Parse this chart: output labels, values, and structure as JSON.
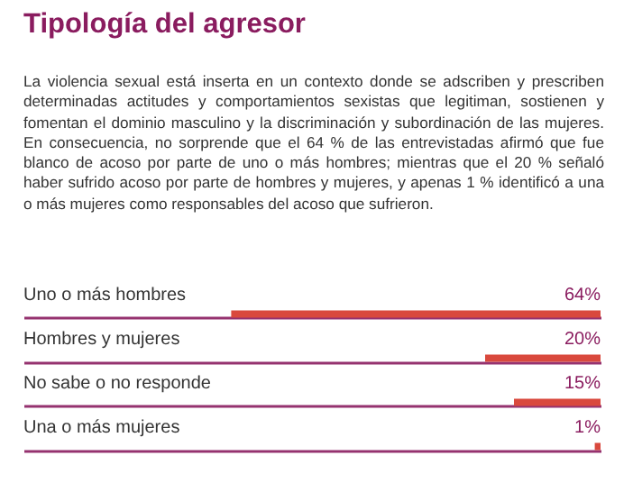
{
  "chart_data": {
    "type": "bar",
    "orientation": "horizontal",
    "title": "Tipología del agresor",
    "subtitle": "La violencia sexual está inserta en un contexto donde se adscriben y prescriben determinadas actitudes y comportamientos sexistas que legitiman, sostienen y fomentan el dominio masculino y la discriminación y subordinación de las mujeres. En consecuencia, no sorprende que el 64 % de las entrevistadas afirmó que fue blanco de acoso por parte de uno o más hombres; mientras que el 20 % señaló haber sufrido acoso por parte de hombres y mujeres, y apenas 1 % identificó a una o más mujeres como responsables del acoso que sufrieron.",
    "categories": [
      "Uno o más hombres",
      "Hombres y mujeres",
      "No sabe o no responde",
      "Una o más mujeres"
    ],
    "values": [
      64,
      20,
      15,
      1
    ],
    "value_labels": [
      "64%",
      "20%",
      "15%",
      "1%"
    ],
    "color": "#d9493d",
    "xlim": [
      100,
      0
    ],
    "grid": "y"
  }
}
